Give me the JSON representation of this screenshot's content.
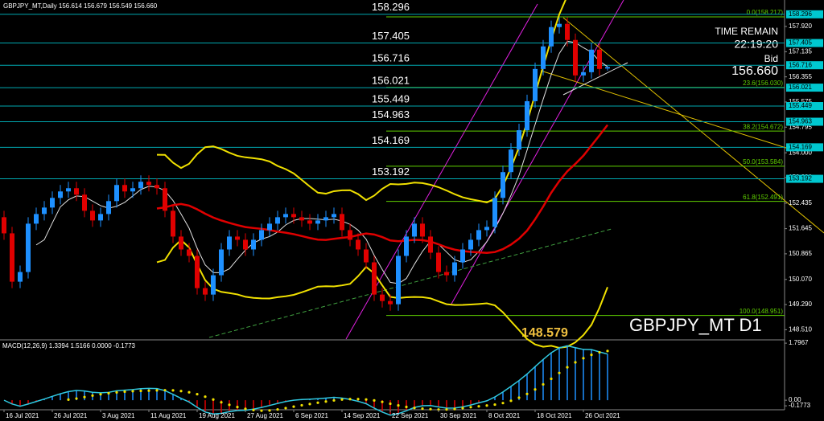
{
  "chart_data": {
    "type": "candlestick",
    "header": "GBPJPY_MT,Daily  156.614 156.679 156.549 156.660",
    "watermark": "GBPJPY_MT D1",
    "time_remain_label": "TIME REMAIN",
    "time_remain": "22:19:20",
    "bid_label": "Bid",
    "bid": "156.660",
    "price_callout": "148.579",
    "up_color": "#1e90ff",
    "down_color": "#e00000",
    "ylim": [
      148.22,
      158.74
    ],
    "yticks": [
      {
        "value": 157.92,
        "label": "157.920"
      },
      157.135,
      156.355,
      155.575,
      154.795,
      {
        "value": 154.0,
        "label": "154.000"
      },
      {
        "value": 153.23,
        "label": "153.230"
      },
      152.435,
      151.645,
      150.865,
      {
        "value": 150.07,
        "label": "150.070"
      },
      {
        "value": 149.29,
        "label": "149.290"
      },
      {
        "value": 148.51,
        "label": "148.510"
      }
    ],
    "levels": [
      158.296,
      157.405,
      156.716,
      156.021,
      155.449,
      154.963,
      154.169,
      153.192
    ],
    "fib_levels": [
      {
        "value": 158.217,
        "label": "0.0(158.217)"
      },
      {
        "value": 156.03,
        "label": "23.6(156.030)"
      },
      {
        "value": 154.672,
        "label": "38.2(154.672)"
      },
      {
        "value": 153.584,
        "label": "50.0(153.584)"
      },
      {
        "value": 152.491,
        "label": "61.8(152.491)"
      },
      {
        "value": 148.951,
        "label": "100.0(148.951)"
      }
    ],
    "date_labels": [
      "16 Jul 2021",
      "26 Jul 2021",
      "3 Aug 2021",
      "11 Aug 2021",
      "19 Aug 2021",
      "27 Aug 2021",
      "6 Sep 2021",
      "14 Sep 2021",
      "22 Sep 2021",
      "30 Sep 2021",
      "8 Oct 2021",
      "18 Oct 2021",
      "26 Oct 2021"
    ],
    "open": [
      152.0,
      151.5,
      150.0,
      150.3,
      151.8,
      152.1,
      152.3,
      152.6,
      152.8,
      152.9,
      152.7,
      152.2,
      151.9,
      152.1,
      152.5,
      153.0,
      152.8,
      152.9,
      153.1,
      153.0,
      152.9,
      152.2,
      151.4,
      151.0,
      150.8,
      149.8,
      149.6,
      150.2,
      151.0,
      151.4,
      151.3,
      151.0,
      151.3,
      151.6,
      151.8,
      152.0,
      152.1,
      152.0,
      151.9,
      151.8,
      151.9,
      152.0,
      152.1,
      151.6,
      151.3,
      151.0,
      150.6,
      149.6,
      149.4,
      149.3,
      150.8,
      151.4,
      151.8,
      151.4,
      150.9,
      150.3,
      150.2,
      150.6,
      151.0,
      151.3,
      151.6,
      151.7,
      152.6,
      153.4,
      154.1,
      154.7,
      155.6,
      156.6,
      157.3,
      157.9,
      158.0,
      157.5,
      156.4,
      156.5,
      157.2,
      156.614
    ],
    "high": [
      152.2,
      151.7,
      150.5,
      152.0,
      152.3,
      152.5,
      152.8,
      153.0,
      153.1,
      153.1,
      152.9,
      152.4,
      152.3,
      152.7,
      153.2,
      153.2,
      153.1,
      153.3,
      153.3,
      153.2,
      153.1,
      152.4,
      151.6,
      151.2,
      151.0,
      150.0,
      150.4,
      151.2,
      151.6,
      151.6,
      151.5,
      151.5,
      151.8,
      152.0,
      152.2,
      152.3,
      152.3,
      152.2,
      152.1,
      152.1,
      152.2,
      152.3,
      152.3,
      151.8,
      151.5,
      151.2,
      150.8,
      149.8,
      149.6,
      151.0,
      151.6,
      152.0,
      152.0,
      151.6,
      151.1,
      150.5,
      150.8,
      151.2,
      151.5,
      151.8,
      151.9,
      152.8,
      153.6,
      154.3,
      154.9,
      155.8,
      156.8,
      157.5,
      158.1,
      158.2,
      158.2,
      157.7,
      156.7,
      157.4,
      157.4,
      156.679
    ],
    "low": [
      151.3,
      149.8,
      149.8,
      150.1,
      151.6,
      151.9,
      152.1,
      152.4,
      152.6,
      152.5,
      152.0,
      151.7,
      151.7,
      151.9,
      152.3,
      152.6,
      152.6,
      152.7,
      152.8,
      152.7,
      152.0,
      151.2,
      150.8,
      150.6,
      149.6,
      149.4,
      149.4,
      150.0,
      150.8,
      151.1,
      150.8,
      150.8,
      151.1,
      151.4,
      151.6,
      151.8,
      151.8,
      151.7,
      151.6,
      151.6,
      151.7,
      151.8,
      151.4,
      151.1,
      150.8,
      150.4,
      149.4,
      149.2,
      149.1,
      149.1,
      150.6,
      151.2,
      151.2,
      150.7,
      150.1,
      150.0,
      150.0,
      150.4,
      150.8,
      151.1,
      151.4,
      151.5,
      152.4,
      153.2,
      153.9,
      154.5,
      155.4,
      156.4,
      157.1,
      157.7,
      157.3,
      156.2,
      156.2,
      156.3,
      156.4,
      156.549
    ],
    "close": [
      151.5,
      150.0,
      150.3,
      151.8,
      152.1,
      152.3,
      152.6,
      152.8,
      152.9,
      152.7,
      152.2,
      151.9,
      152.1,
      152.5,
      153.0,
      152.8,
      152.9,
      153.1,
      153.0,
      152.9,
      152.2,
      151.4,
      151.0,
      150.8,
      149.8,
      149.6,
      150.2,
      151.0,
      151.4,
      151.3,
      151.0,
      151.3,
      151.6,
      151.8,
      152.0,
      152.1,
      152.0,
      151.9,
      151.8,
      151.9,
      152.0,
      152.1,
      151.6,
      151.3,
      151.0,
      150.6,
      149.6,
      149.4,
      149.3,
      150.8,
      151.4,
      151.8,
      151.4,
      150.9,
      150.3,
      150.2,
      150.6,
      151.0,
      151.3,
      151.6,
      151.7,
      152.6,
      153.4,
      154.1,
      154.7,
      155.6,
      156.6,
      157.3,
      157.9,
      158.0,
      157.5,
      156.4,
      156.5,
      157.2,
      156.6,
      156.66
    ],
    "macd_title": "MACD(12,26,9) 1.3394 1.5166 0.0000 -0.1773",
    "macd_ylim": [
      -0.25,
      1.85
    ],
    "macd_yticks": [
      1.7967,
      {
        "value": 0,
        "label": "0.00"
      },
      -0.1773
    ]
  }
}
